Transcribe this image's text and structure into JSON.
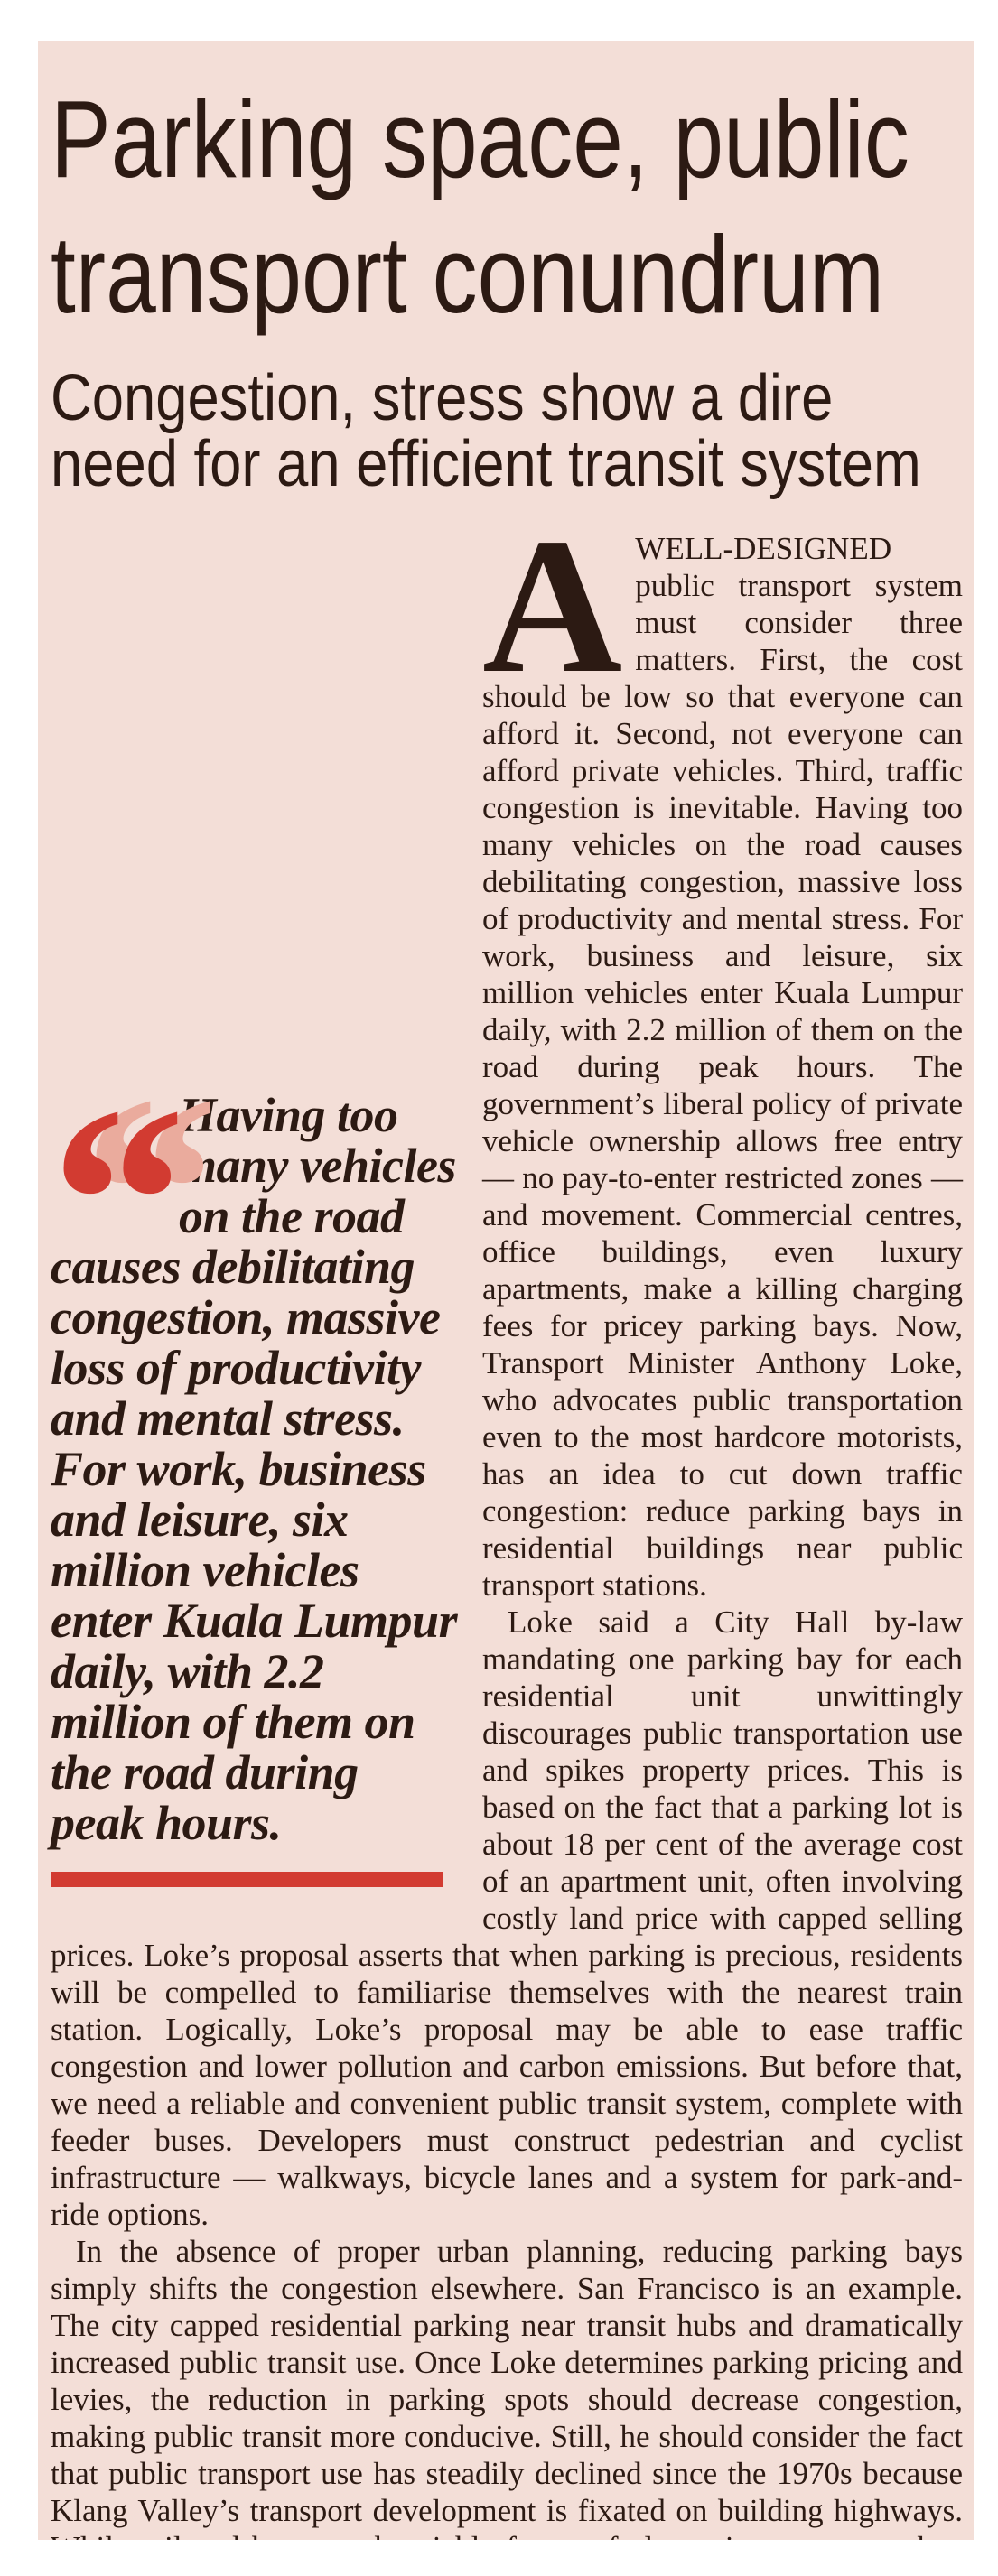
{
  "colors": {
    "page-bg": "#ffffff",
    "panel-bg": "#f3ded7",
    "ink": "#2c1a13",
    "accent": "#d23b31",
    "quote-shadow": "#eaab9d"
  },
  "article": {
    "headline_lines": [
      "Parking space, public",
      "transport conundrum"
    ],
    "subheadline_lines": [
      "Congestion, stress show a dire",
      "need for an efficient transit system"
    ],
    "drop_cap": "A",
    "paragraphs": [
      "WELL-DESIGNED public transport system must consider three matters. First, the cost should be low so that everyone can afford it. Second, not everyone can afford private vehicles. Third, traffic congestion is inevitable. Having too many vehicles on the road causes debilitating congestion, massive loss of productivity and mental stress. For work, business and leisure, six million vehicles enter Kuala Lumpur daily, with 2.2 million of them on the road during peak hours. The government’s liberal policy of private vehicle ownership allows free entry — no pay-to-enter restricted zones — and movement. Commercial centres, office buildings, even luxury apartments, make a killing charging fees for pricey parking bays. Now, Transport Minister Anthony Loke, who advocates public transportation even to the most hardcore motorists, has an idea to cut down traffic congestion: reduce parking bays in residential buildings near public transport stations.",
      "Loke said a City Hall by-law mandating one parking bay for each residential unit unwittingly discourages public transportation use and spikes property prices. This is based on the fact that a parking lot is about 18 per cent of the average cost of an apartment unit, often involving costly land price with capped selling prices. Loke’s proposal asserts that when parking is precious, residents will be compelled to familiarise themselves with the nearest train station. Logically, Loke’s proposal may be able to ease traffic congestion and lower pollution and carbon emissions. But before that, we need a reliable and convenient public transit system, complete with feeder buses. Developers must construct pedestrian and cyclist infrastructure — walkways, bicycle lanes and a system for park-and-ride options.",
      "In the absence of proper urban planning, reducing parking bays simply shifts the congestion elsewhere. San Francisco is an example. The city capped residential parking near transit hubs and dramatically increased public transit use. Once Loke determines parking pricing and levies, the reduction in parking spots should decrease congestion, making public transit more conducive. Still, he should consider the fact that public transport use has steadily declined since the 1970s because Klang Valley’s transport development is fixated on building highways. While rail and bus may be viable forms of alternative transport, they haven’t changed private-to-public transport travel preferences. In reality, Kuala Lumpur’s traffic congestion reflects urban development normalising the driving lifestyle."
    ],
    "pull_quote": {
      "icon": "double-quote-icon",
      "glyph": "“",
      "text": "Having too many vehicles on the road causes debilitating congestion, massive loss of productivity and mental stress. For work, business and leisure, six million vehicles enter Kuala Lumpur daily, with 2.2 million of them on the road during peak hours."
    }
  }
}
